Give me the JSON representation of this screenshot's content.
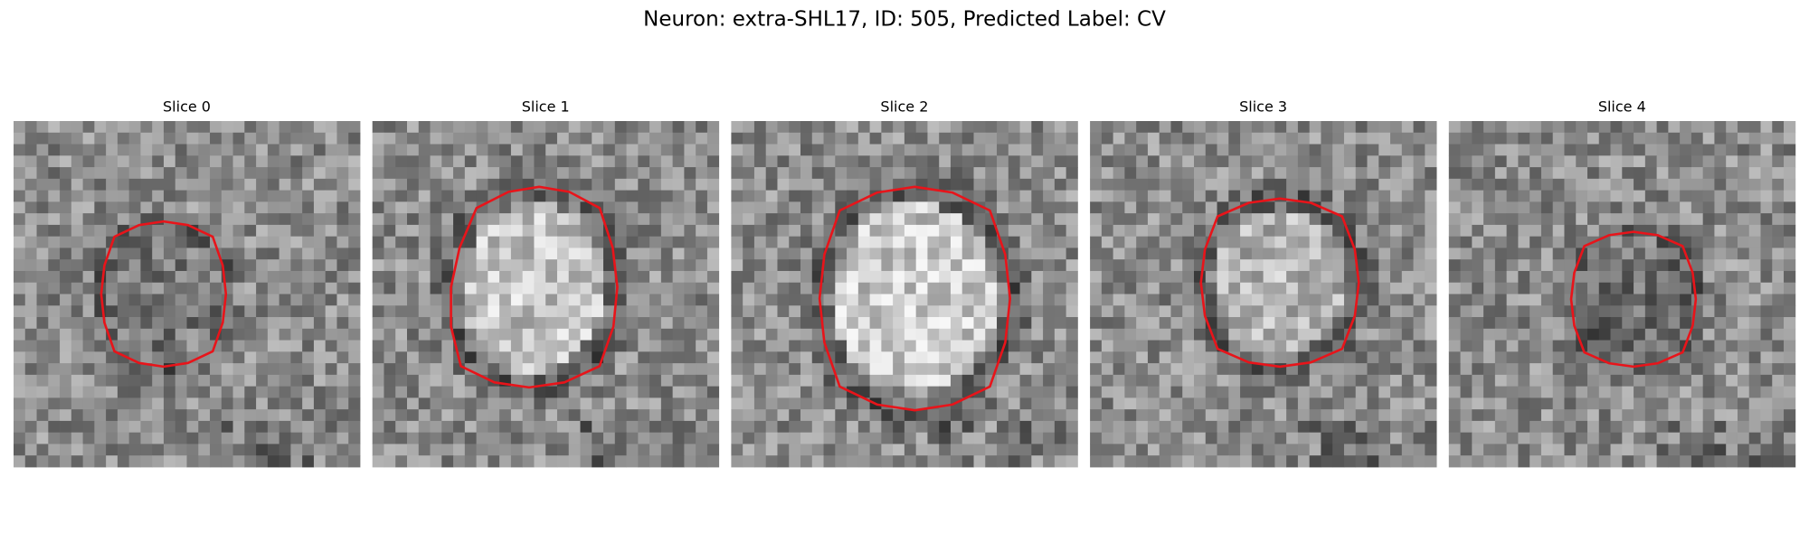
{
  "title": "Neuron: extra-SHL17, ID: 505, Predicted Label: CV",
  "panels": [
    {
      "title": "Slice 0"
    },
    {
      "title": "Slice 1"
    },
    {
      "title": "Slice 2"
    },
    {
      "title": "Slice 3"
    },
    {
      "title": "Slice 4"
    }
  ]
}
